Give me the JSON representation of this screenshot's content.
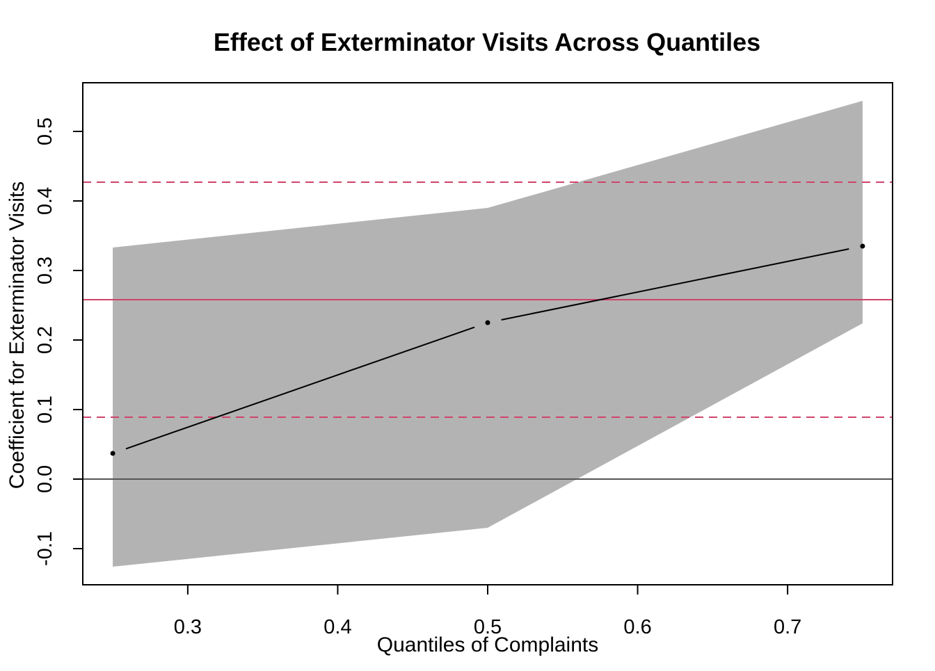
{
  "chart_data": {
    "type": "line",
    "title": "Effect of Exterminator Visits Across Quantiles",
    "xlabel": "Quantiles of Complaints",
    "ylabel": "Coefficient for Exterminator Visits",
    "xlim": [
      0.23,
      0.77
    ],
    "ylim": [
      -0.152,
      0.57
    ],
    "x_ticks": [
      0.3,
      0.4,
      0.5,
      0.6,
      0.7
    ],
    "x_tick_labels": [
      "0.3",
      "0.4",
      "0.5",
      "0.6",
      "0.7"
    ],
    "y_ticks": [
      -0.1,
      0.0,
      0.1,
      0.2,
      0.3,
      0.4,
      0.5
    ],
    "y_tick_labels": [
      "-0.1",
      "0.0",
      "0.1",
      "0.2",
      "0.3",
      "0.4",
      "0.5"
    ],
    "grid": false,
    "legend": "none",
    "series": [
      {
        "x": [
          0.25,
          0.5,
          0.75
        ],
        "y": [
          0.037,
          0.225,
          0.335
        ],
        "ci_lower": [
          -0.126,
          -0.07,
          0.224
        ],
        "ci_upper": [
          0.333,
          0.39,
          0.544
        ]
      }
    ],
    "reference_lines": {
      "zero": 0.0,
      "estimate": 0.258,
      "ci_lower": 0.089,
      "ci_upper": 0.427
    },
    "colors": {
      "band": "#b3b3b3",
      "line": "#000000",
      "zero_line": "#555555",
      "reference": "#d0436a"
    }
  }
}
